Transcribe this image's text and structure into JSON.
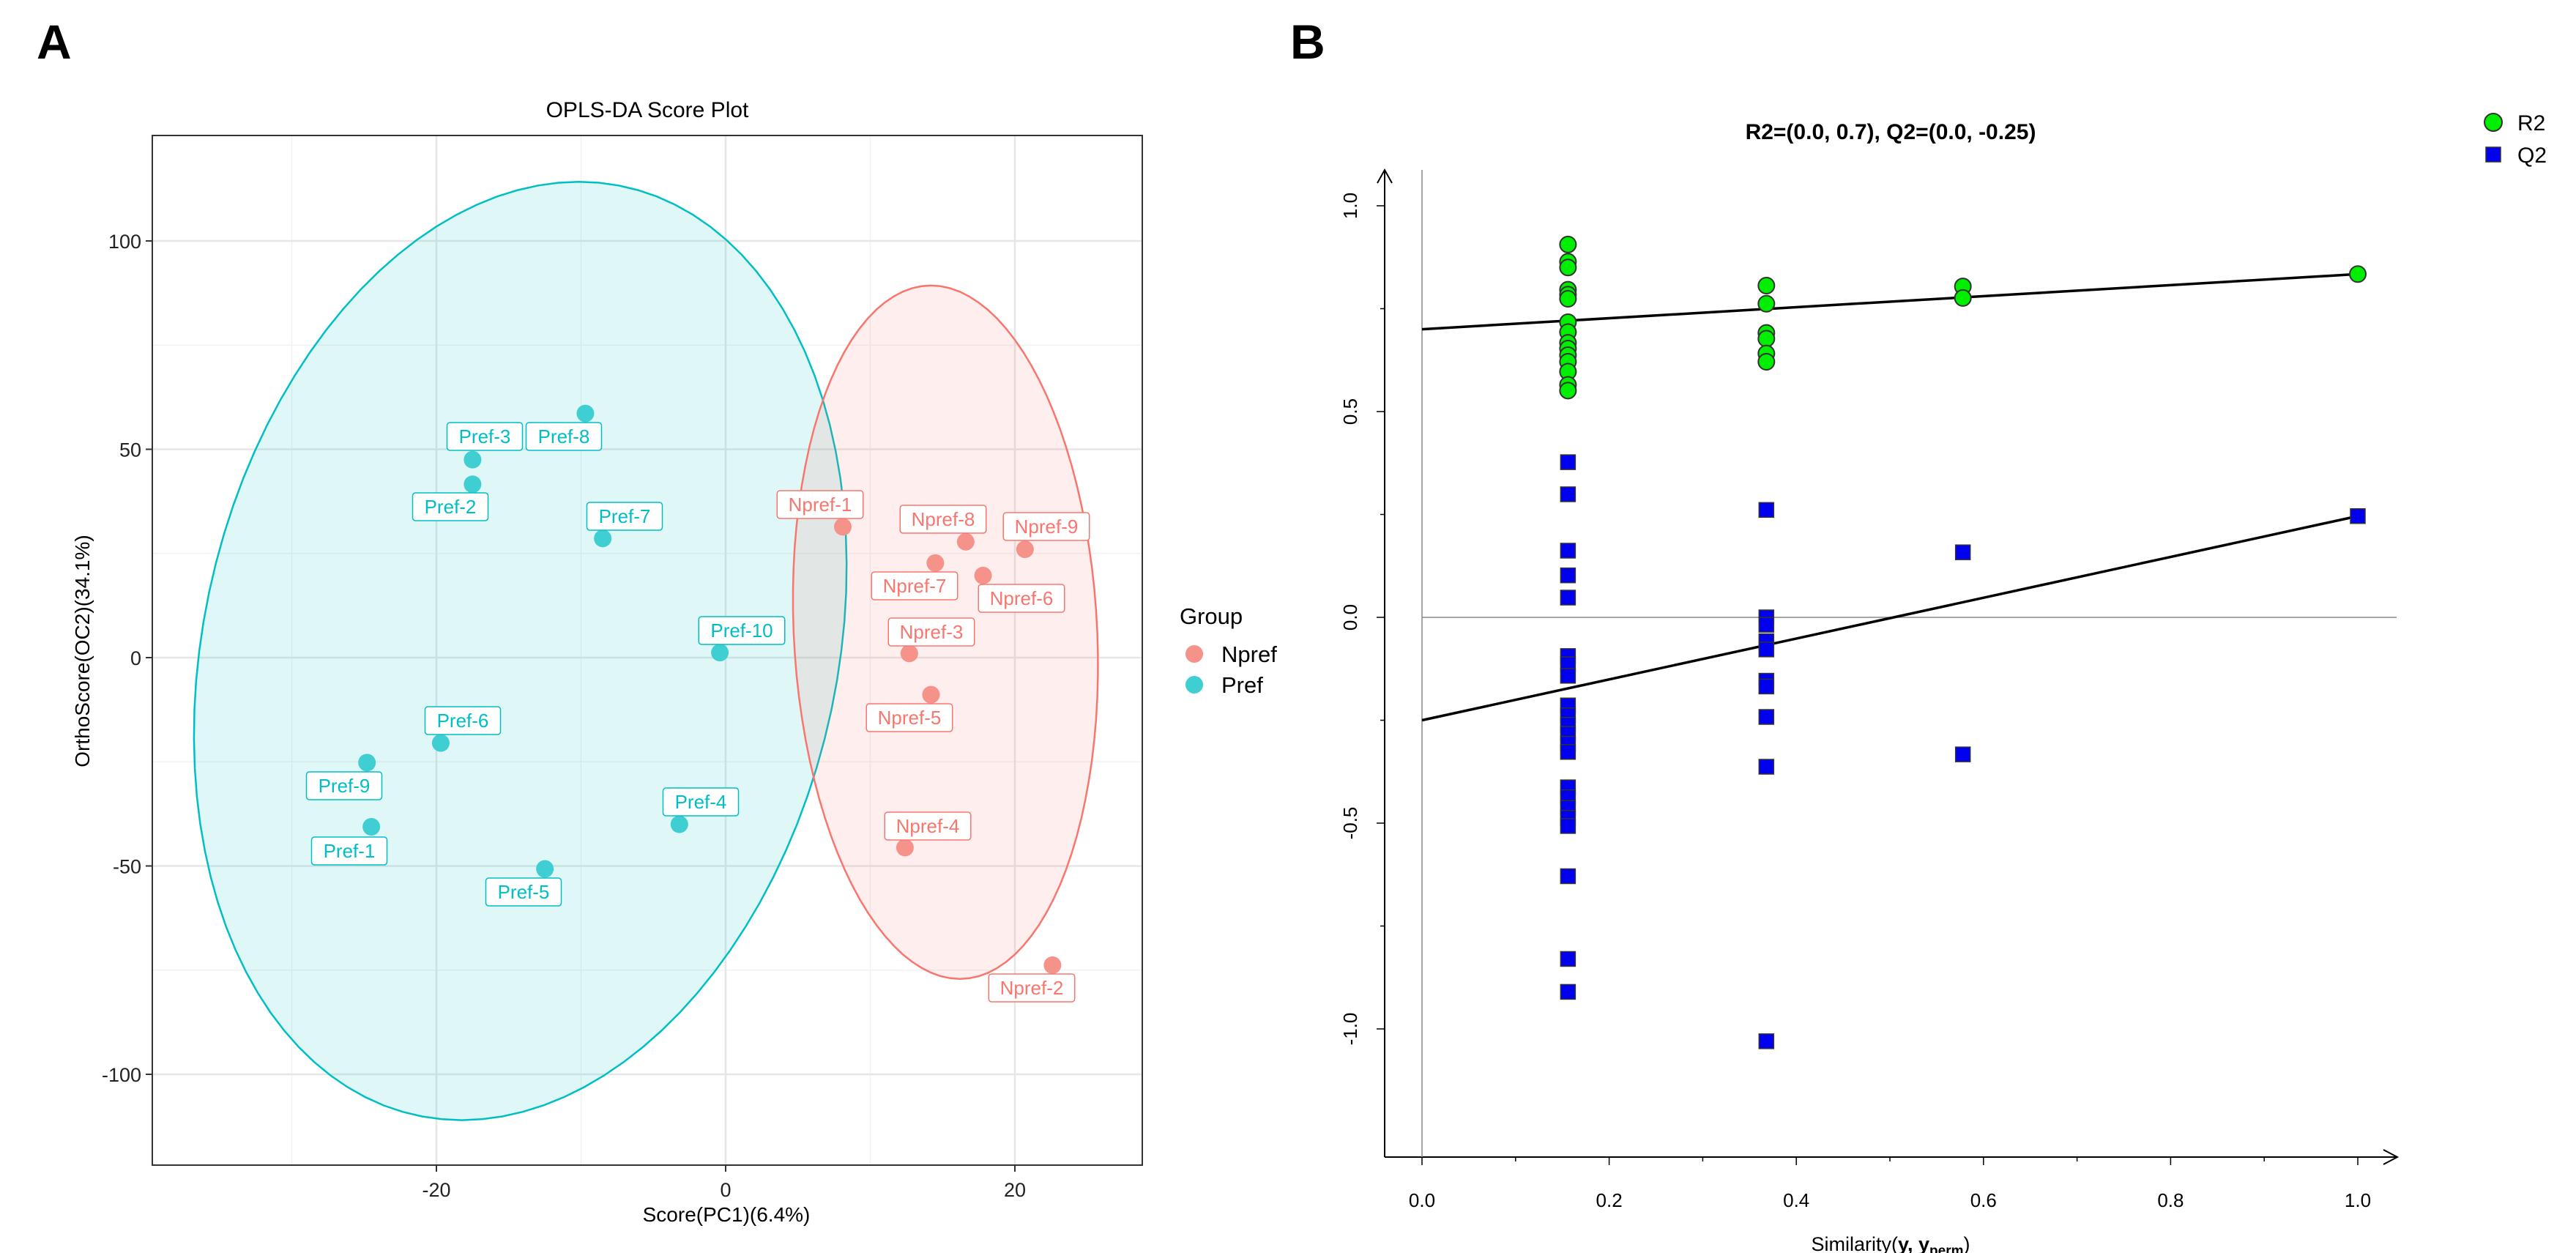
{
  "panels": {
    "a": "A",
    "b": "B"
  },
  "chart_data": [
    {
      "type": "scatter",
      "title": "OPLS-DA Score Plot",
      "xlabel": "Score(PC1)(6.4%)",
      "ylabel": "OrthoScore(OC2)(34.1%)",
      "xlim": [
        -39.6,
        28.8
      ],
      "ylim": [
        -121.8,
        125.3
      ],
      "xticks": [
        -20,
        0,
        20
      ],
      "yticks": [
        -100,
        -50,
        0,
        50,
        100
      ],
      "xtick_labels": [
        "-20",
        "0",
        "20"
      ],
      "ytick_labels": [
        "-100",
        "-50",
        "0",
        "50",
        "100"
      ],
      "grid": true,
      "legend": {
        "title": "Group",
        "placement": "right",
        "entries": [
          "Npref",
          "Pref"
        ]
      },
      "colors": {
        "Npref": "#F8766D",
        "Pref": "#00BFC4"
      },
      "ellipses": [
        {
          "group": "Pref",
          "center": [
            -14.2,
            1.6
          ],
          "conj_u": [
            22.2,
            0
          ],
          "conj_v": [
            4.05,
            112.6
          ]
        },
        {
          "group": "Npref",
          "center": [
            15.2,
            6.1
          ],
          "conj_u": [
            10.5,
            0
          ],
          "conj_v": [
            -1.0,
            83.2
          ]
        }
      ],
      "points": [
        {
          "label": "Pref-1",
          "group": "Pref",
          "x": -24.5,
          "y": -40.6
        },
        {
          "label": "Pref-2",
          "group": "Pref",
          "x": -17.5,
          "y": 41.6
        },
        {
          "label": "Pref-3",
          "group": "Pref",
          "x": -17.5,
          "y": 47.5
        },
        {
          "label": "Pref-4",
          "group": "Pref",
          "x": -3.2,
          "y": -40.0
        },
        {
          "label": "Pref-5",
          "group": "Pref",
          "x": -12.5,
          "y": -50.7
        },
        {
          "label": "Pref-6",
          "group": "Pref",
          "x": -19.7,
          "y": -20.5
        },
        {
          "label": "Pref-7",
          "group": "Pref",
          "x": -8.5,
          "y": 28.6
        },
        {
          "label": "Pref-8",
          "group": "Pref",
          "x": -9.7,
          "y": 58.6
        },
        {
          "label": "Pref-9",
          "group": "Pref",
          "x": -24.8,
          "y": -25.2
        },
        {
          "label": "Pref-10",
          "group": "Pref",
          "x": -0.4,
          "y": 1.2
        },
        {
          "label": "Npref-1",
          "group": "Npref",
          "x": 8.1,
          "y": 31.4
        },
        {
          "label": "Npref-2",
          "group": "Npref",
          "x": 22.6,
          "y": -73.8
        },
        {
          "label": "Npref-3",
          "group": "Npref",
          "x": 12.7,
          "y": 1.0
        },
        {
          "label": "Npref-4",
          "group": "Npref",
          "x": 12.4,
          "y": -45.6
        },
        {
          "label": "Npref-5",
          "group": "Npref",
          "x": 14.2,
          "y": -8.9
        },
        {
          "label": "Npref-6",
          "group": "Npref",
          "x": 17.8,
          "y": 19.7
        },
        {
          "label": "Npref-7",
          "group": "Npref",
          "x": 14.5,
          "y": 22.7
        },
        {
          "label": "Npref-8",
          "group": "Npref",
          "x": 16.6,
          "y": 27.8
        },
        {
          "label": "Npref-9",
          "group": "Npref",
          "x": 20.7,
          "y": 26.0
        }
      ]
    },
    {
      "type": "scatter",
      "title": "R2=(0.0, 0.7), Q2=(0.0, -0.25)",
      "xlabel": "Similarity(y, y_perm)",
      "xlabel_parts": {
        "prefix": "Similarity(",
        "y": "y",
        "sep": ", ",
        "yperm": "y",
        "sub": "perm",
        "suffix": ")"
      },
      "ylabel": "",
      "xlim": [
        -0.04,
        1.04
      ],
      "ylim": [
        -1.31,
        1.09
      ],
      "xticks": [
        0.0,
        0.2,
        0.4,
        0.6,
        0.8,
        1.0
      ],
      "xtick_labels": [
        "0.0",
        "0.2",
        "0.4",
        "0.6",
        "0.8",
        "1.0"
      ],
      "yticks": [
        -1.0,
        -0.5,
        0.0,
        0.5,
        1.0
      ],
      "ytick_labels": [
        "-1.0",
        "-0.5",
        "0.0",
        "0.5",
        "1.0"
      ],
      "legend": {
        "placement": "top-right",
        "entries": [
          "R2",
          "Q2"
        ]
      },
      "colors": {
        "R2": "#00EE00",
        "Q2": "#0000EE"
      },
      "series": [
        {
          "name": "R2",
          "marker": "circle",
          "x": [
            0.156,
            0.156,
            0.156,
            0.156,
            0.156,
            0.156,
            0.156,
            0.156,
            0.156,
            0.156,
            0.156,
            0.156,
            0.156,
            0.156,
            0.156,
            0.368,
            0.368,
            0.368,
            0.368,
            0.368,
            0.368,
            0.578,
            0.578,
            1.0
          ],
          "y": [
            0.906,
            0.864,
            0.85,
            0.796,
            0.784,
            0.774,
            0.717,
            0.693,
            0.667,
            0.653,
            0.637,
            0.621,
            0.597,
            0.565,
            0.551,
            0.806,
            0.762,
            0.691,
            0.677,
            0.641,
            0.621,
            0.804,
            0.776,
            0.834
          ]
        },
        {
          "name": "Q2",
          "marker": "square",
          "x": [
            0.156,
            0.156,
            0.156,
            0.156,
            0.156,
            0.156,
            0.156,
            0.156,
            0.156,
            0.156,
            0.156,
            0.156,
            0.156,
            0.156,
            0.156,
            0.156,
            0.156,
            0.156,
            0.156,
            0.156,
            0.156,
            0.156,
            0.368,
            0.368,
            0.368,
            0.368,
            0.368,
            0.368,
            0.368,
            0.368,
            0.368,
            0.368,
            0.578,
            0.578,
            1.0
          ],
          "y": [
            0.377,
            0.299,
            0.162,
            0.102,
            0.048,
            -0.094,
            -0.114,
            -0.142,
            -0.214,
            -0.238,
            -0.261,
            -0.283,
            -0.307,
            -0.327,
            -0.413,
            -0.437,
            -0.463,
            -0.487,
            -0.507,
            -0.629,
            -0.83,
            -0.91,
            0.261,
            0.0,
            -0.018,
            -0.058,
            -0.078,
            -0.154,
            -0.168,
            -0.242,
            -0.363,
            -1.03,
            0.158,
            -0.333,
            0.246
          ]
        }
      ],
      "regression_lines": [
        {
          "name": "R2",
          "intercept": 0.7,
          "end": [
            1.0,
            0.834
          ]
        },
        {
          "name": "Q2",
          "intercept": -0.25,
          "end": [
            1.0,
            0.246
          ]
        }
      ]
    }
  ]
}
